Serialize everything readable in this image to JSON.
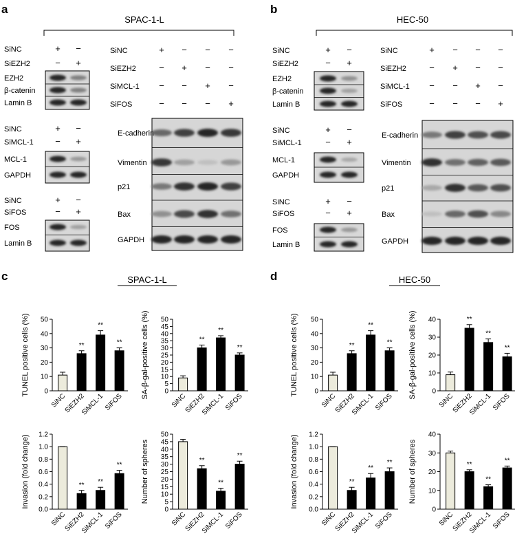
{
  "panels": [
    {
      "letter": "a",
      "cell": "SPAC-1-L",
      "small_blots": [
        {
          "conds": [
            "SiNC",
            "SiEZH2"
          ],
          "signs": [
            [
              "+",
              "−"
            ],
            [
              "−",
              "+"
            ]
          ],
          "bands": [
            "EZH2",
            "β-catenin",
            "Lamin B"
          ]
        },
        {
          "conds": [
            "SiNC",
            "SiMCL-1"
          ],
          "signs": [
            [
              "+",
              "−"
            ],
            [
              "−",
              "+"
            ]
          ],
          "bands": [
            "MCL-1",
            "GAPDH"
          ]
        },
        {
          "conds": [
            "SiNC",
            "SiFOS"
          ],
          "signs": [
            [
              "+",
              "−"
            ],
            [
              "−",
              "+"
            ]
          ],
          "bands": [
            "FOS",
            "Lamin B"
          ]
        }
      ],
      "big_blot": {
        "conds": [
          "SiNC",
          "SiEZH2",
          "SiMCL-1",
          "SiFOS"
        ],
        "signs": [
          [
            "+",
            "−",
            "−",
            "−"
          ],
          [
            "−",
            "+",
            "−",
            "−"
          ],
          [
            "−",
            "−",
            "+",
            "−"
          ],
          [
            "−",
            "−",
            "−",
            "+"
          ]
        ],
        "bands": [
          "E-cadherin",
          "Vimentin",
          "p21",
          "Bax",
          "GAPDH"
        ]
      }
    },
    {
      "letter": "b",
      "cell": "HEC-50",
      "small_blots": [
        {
          "conds": [
            "SiNC",
            "SiEZH2"
          ],
          "signs": [
            [
              "+",
              "−"
            ],
            [
              "−",
              "+"
            ]
          ],
          "bands": [
            "EZH2",
            "β-catenin",
            "Lamin B"
          ]
        },
        {
          "conds": [
            "SiNC",
            "SiMCL-1"
          ],
          "signs": [
            [
              "+",
              "−"
            ],
            [
              "−",
              "+"
            ]
          ],
          "bands": [
            "MCL-1",
            "GAPDH"
          ]
        },
        {
          "conds": [
            "SiNC",
            "SiFOS"
          ],
          "signs": [
            [
              "+",
              "−"
            ],
            [
              "−",
              "+"
            ]
          ],
          "bands": [
            "FOS",
            "Lamin B"
          ]
        }
      ],
      "big_blot": {
        "conds": [
          "SiNC",
          "SiEZH2",
          "SiMCL-1",
          "SiFOS"
        ],
        "signs": [
          [
            "+",
            "−",
            "−",
            "−"
          ],
          [
            "−",
            "+",
            "−",
            "−"
          ],
          [
            "−",
            "−",
            "+",
            "−"
          ],
          [
            "−",
            "−",
            "−",
            "+"
          ]
        ],
        "bands": [
          "E-cadherin",
          "Vimentin",
          "p21",
          "Bax",
          "GAPDH"
        ]
      }
    },
    {
      "letter": "c",
      "cell": "SPAC-1-L"
    },
    {
      "letter": "d",
      "cell": "HEC-50"
    }
  ],
  "colors": {
    "control_bar": "#ecebdc",
    "treated_bar": "#000000"
  },
  "chart_data": [
    {
      "id": "c1",
      "type": "bar",
      "panel": "c",
      "categories": [
        "SiNC",
        "SiEZH2",
        "SiMCL-1",
        "SiFOS"
      ],
      "values": [
        11,
        26,
        39,
        28
      ],
      "errors": [
        2,
        2,
        3,
        2
      ],
      "sig": [
        "",
        "**",
        "**",
        "**"
      ],
      "ylabel": "TUNEL positive cells (%)",
      "ylim": [
        0,
        50
      ],
      "yticks": [
        0,
        10,
        20,
        30,
        40,
        50
      ]
    },
    {
      "id": "c2",
      "type": "bar",
      "panel": "c",
      "categories": [
        "SiNC",
        "SiEZH2",
        "SiMCL-1",
        "SiFOS"
      ],
      "values": [
        9,
        30,
        37,
        25
      ],
      "errors": [
        1.5,
        2,
        1.5,
        1.5
      ],
      "sig": [
        "",
        "**",
        "**",
        "**"
      ],
      "ylabel": "SA-β-gal-positive cells (%)",
      "ylim": [
        0,
        50
      ],
      "yticks": [
        0,
        5,
        10,
        15,
        20,
        25,
        30,
        35,
        40,
        45,
        50
      ]
    },
    {
      "id": "c3",
      "type": "bar",
      "panel": "c",
      "categories": [
        "SiNC",
        "SiEZH2",
        "SiMCL-1",
        "SiFOS"
      ],
      "values": [
        1.0,
        0.25,
        0.3,
        0.57
      ],
      "errors": [
        0,
        0.05,
        0.05,
        0.05
      ],
      "sig": [
        "",
        "**",
        "**",
        "**"
      ],
      "ylabel": "Invasion (fold change)",
      "ylim": [
        0,
        1.2
      ],
      "yticks": [
        0,
        0.2,
        0.4,
        0.6,
        0.8,
        1.0,
        1.2
      ],
      "yfmt": 1
    },
    {
      "id": "c4",
      "type": "bar",
      "panel": "c",
      "categories": [
        "SiNC",
        "SiEZH2",
        "SiMCL-1",
        "SiFOS"
      ],
      "values": [
        45,
        27,
        12,
        30
      ],
      "errors": [
        1.5,
        2,
        2,
        2
      ],
      "sig": [
        "",
        "**",
        "**",
        "**"
      ],
      "ylabel": "Number of spheres",
      "ylim": [
        0,
        50
      ],
      "yticks": [
        0,
        5,
        10,
        15,
        20,
        25,
        30,
        35,
        40,
        45,
        50
      ]
    },
    {
      "id": "d1",
      "type": "bar",
      "panel": "d",
      "categories": [
        "SiNC",
        "SiEZH2",
        "SiMCL-1",
        "SiFOS"
      ],
      "values": [
        11,
        26,
        39,
        28
      ],
      "errors": [
        2,
        2,
        3,
        2
      ],
      "sig": [
        "",
        "**",
        "**",
        "**"
      ],
      "ylabel": "TUNEL positive cells (%)",
      "ylim": [
        0,
        50
      ],
      "yticks": [
        0,
        10,
        20,
        30,
        40,
        50
      ]
    },
    {
      "id": "d2",
      "type": "bar",
      "panel": "d",
      "categories": [
        "SiNC",
        "SiEZH2",
        "SiMCL-1",
        "SiFOS"
      ],
      "values": [
        9,
        35,
        27,
        19
      ],
      "errors": [
        1.5,
        2,
        2,
        2
      ],
      "sig": [
        "",
        "**",
        "**",
        "**"
      ],
      "ylabel": "SA-β-gal-positive cells (%)",
      "ylim": [
        0,
        40
      ],
      "yticks": [
        0,
        10,
        20,
        30,
        40
      ]
    },
    {
      "id": "d3",
      "type": "bar",
      "panel": "d",
      "categories": [
        "SiNC",
        "SiEZH2",
        "SiMCL-1",
        "SiFOS"
      ],
      "values": [
        1.0,
        0.3,
        0.5,
        0.6
      ],
      "errors": [
        0,
        0.05,
        0.07,
        0.06
      ],
      "sig": [
        "",
        "**",
        "**",
        "**"
      ],
      "ylabel": "Invasion (fold change)",
      "ylim": [
        0,
        1.2
      ],
      "yticks": [
        0,
        0.2,
        0.4,
        0.6,
        0.8,
        1.0,
        1.2
      ],
      "yfmt": 1
    },
    {
      "id": "d4",
      "type": "bar",
      "panel": "d",
      "categories": [
        "SiNC",
        "SiEZH2",
        "SiMCL-1",
        "SiFOS"
      ],
      "values": [
        30,
        20,
        12,
        22
      ],
      "errors": [
        1,
        1,
        1,
        1
      ],
      "sig": [
        "",
        "**",
        "**",
        "**"
      ],
      "ylabel": "Number of spheres",
      "ylim": [
        0,
        40
      ],
      "yticks": [
        0,
        10,
        20,
        30,
        40
      ]
    }
  ]
}
